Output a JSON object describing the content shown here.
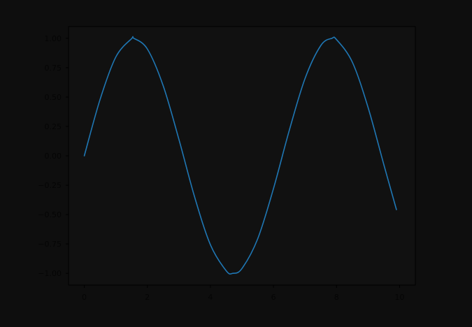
{
  "colors": {
    "background": "#0e0e0e",
    "axes_face": "#111111",
    "axes_edge": "#000000",
    "text": "#050505",
    "series": "#1f77b4"
  },
  "chart_data": {
    "type": "line",
    "title": "",
    "xlabel": "",
    "ylabel": "",
    "xlim": [
      -0.5,
      10.5
    ],
    "ylim": [
      -1.1,
      1.1
    ],
    "xticks": [
      0,
      2,
      4,
      6,
      8,
      10
    ],
    "xtick_labels": [
      "0",
      "2",
      "4",
      "6",
      "8",
      "10"
    ],
    "yticks": [
      1.0,
      0.75,
      0.5,
      0.25,
      0.0,
      -0.25,
      -0.5,
      -0.75,
      -1.0
    ],
    "ytick_labels": [
      "1.00",
      "0.75",
      "0.50",
      "0.25",
      "0.00",
      "−0.25",
      "−0.50",
      "−0.75",
      "−1.00"
    ],
    "grid": false,
    "legend": "none",
    "series": [
      {
        "x": [
          0,
          0.5,
          1,
          1.5,
          1.5708,
          2,
          2.5,
          3,
          3.5,
          4,
          4.5,
          4.7124,
          5,
          5.5,
          6,
          6.5,
          7,
          7.5,
          7.854,
          8,
          8.5,
          9,
          9.5,
          9.9
        ],
        "y": [
          0,
          0.479,
          0.841,
          0.997,
          1,
          0.909,
          0.598,
          0.141,
          -0.351,
          -0.757,
          -0.978,
          -1,
          -0.959,
          -0.706,
          -0.279,
          0.215,
          0.657,
          0.938,
          1,
          0.989,
          0.798,
          0.412,
          -0.075,
          -0.458
        ]
      }
    ]
  }
}
